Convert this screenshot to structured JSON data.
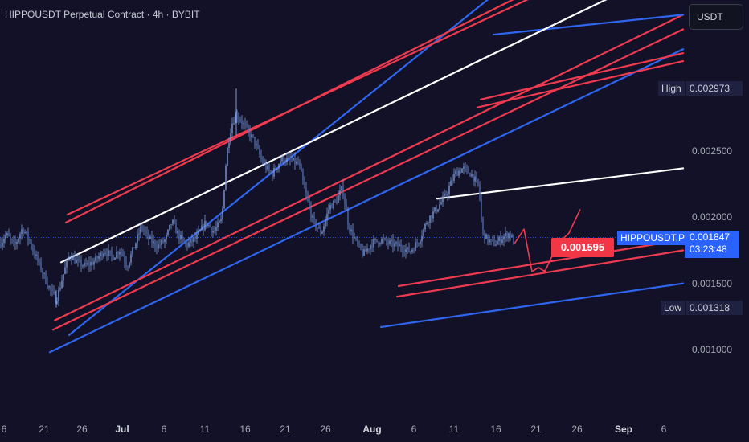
{
  "header": {
    "title": "HIPPOUSDT Perpetual Contract · 4h · BYBIT",
    "currency": "USDT"
  },
  "price_axis": {
    "ticks": [
      "0.002500",
      "0.002000",
      "0.001500",
      "0.001000"
    ],
    "high_label": "High",
    "high_value": "0.002973",
    "low_label": "Low",
    "low_value": "0.001318",
    "symbol_label": "HIPPOUSDT.P",
    "last_price": "0.001847",
    "countdown": "03:23:48",
    "target_price": "0.001595"
  },
  "time_axis": {
    "ticks": [
      {
        "label": "6",
        "month": false
      },
      {
        "label": "21",
        "month": false
      },
      {
        "label": "26",
        "month": false
      },
      {
        "label": "Jul",
        "month": true
      },
      {
        "label": "6",
        "month": false
      },
      {
        "label": "11",
        "month": false
      },
      {
        "label": "16",
        "month": false
      },
      {
        "label": "21",
        "month": false
      },
      {
        "label": "26",
        "month": false
      },
      {
        "label": "Aug",
        "month": true
      },
      {
        "label": "6",
        "month": false
      },
      {
        "label": "11",
        "month": false
      },
      {
        "label": "16",
        "month": false
      },
      {
        "label": "21",
        "month": false
      },
      {
        "label": "26",
        "month": false
      },
      {
        "label": "Sep",
        "month": true
      },
      {
        "label": "6",
        "month": false
      }
    ]
  },
  "colors": {
    "background": "#131127",
    "candle": "#7d9ad8",
    "channel_blue": "#2f66f0",
    "channel_red": "#ef3b4f",
    "trend_white": "#ffffff",
    "projection": "#ef3b4f",
    "accent_blue": "#2962ff"
  },
  "chart_data": {
    "type": "candlestick",
    "price_range": [
      0.00085,
      0.0033
    ],
    "high": 0.002973,
    "low": 0.001318,
    "last": 0.001847,
    "target": 0.001595,
    "close_path": [
      [
        0,
        0.0018
      ],
      [
        8,
        0.00187
      ],
      [
        18,
        0.00178
      ],
      [
        28,
        0.00192
      ],
      [
        36,
        0.00183
      ],
      [
        44,
        0.00171
      ],
      [
        52,
        0.0016
      ],
      [
        60,
        0.00148
      ],
      [
        70,
        0.00137
      ],
      [
        78,
        0.00155
      ],
      [
        86,
        0.00172
      ],
      [
        96,
        0.00166
      ],
      [
        106,
        0.00163
      ],
      [
        118,
        0.00167
      ],
      [
        130,
        0.00175
      ],
      [
        140,
        0.0017
      ],
      [
        150,
        0.00176
      ],
      [
        158,
        0.00163
      ],
      [
        166,
        0.00176
      ],
      [
        176,
        0.00193
      ],
      [
        186,
        0.00183
      ],
      [
        196,
        0.00178
      ],
      [
        206,
        0.00183
      ],
      [
        214,
        0.00197
      ],
      [
        222,
        0.00186
      ],
      [
        232,
        0.00179
      ],
      [
        244,
        0.00184
      ],
      [
        256,
        0.00196
      ],
      [
        266,
        0.00189
      ],
      [
        276,
        0.00198
      ],
      [
        282,
        0.00248
      ],
      [
        288,
        0.0027
      ],
      [
        294,
        0.00278
      ],
      [
        300,
        0.00273
      ],
      [
        308,
        0.00265
      ],
      [
        316,
        0.00258
      ],
      [
        326,
        0.00242
      ],
      [
        338,
        0.00232
      ],
      [
        350,
        0.00244
      ],
      [
        362,
        0.00243
      ],
      [
        372,
        0.0024
      ],
      [
        380,
        0.00218
      ],
      [
        390,
        0.00196
      ],
      [
        400,
        0.00188
      ],
      [
        410,
        0.00208
      ],
      [
        418,
        0.00212
      ],
      [
        426,
        0.00222
      ],
      [
        434,
        0.00193
      ],
      [
        444,
        0.0018
      ],
      [
        452,
        0.00172
      ],
      [
        462,
        0.0018
      ],
      [
        474,
        0.00183
      ],
      [
        486,
        0.0018
      ],
      [
        498,
        0.00178
      ],
      [
        510,
        0.00174
      ],
      [
        522,
        0.00183
      ],
      [
        532,
        0.00198
      ],
      [
        544,
        0.00207
      ],
      [
        556,
        0.00218
      ],
      [
        566,
        0.00233
      ],
      [
        576,
        0.00237
      ],
      [
        586,
        0.00233
      ],
      [
        596,
        0.00223
      ],
      [
        600,
        0.0019
      ],
      [
        606,
        0.00183
      ],
      [
        616,
        0.0018
      ],
      [
        626,
        0.00185
      ],
      [
        634,
        0.00188
      ],
      [
        640,
        0.0018
      ]
    ],
    "trendlines": [
      {
        "color": "blue",
        "points": [
          [
            86,
            0.00111
          ],
          [
            608,
            0.00365
          ]
        ]
      },
      {
        "color": "red",
        "points": [
          [
            84,
            0.00202
          ],
          [
            658,
            0.00365
          ]
        ]
      },
      {
        "color": "red",
        "points": [
          [
            82,
            0.00196
          ],
          [
            640,
            0.00365
          ]
        ]
      },
      {
        "color": "red",
        "points": [
          [
            68,
            0.00122
          ],
          [
            850,
            0.00353
          ]
        ]
      },
      {
        "color": "red",
        "points": [
          [
            66,
            0.00115
          ],
          [
            850,
            0.00342
          ]
        ]
      },
      {
        "color": "blue",
        "points": [
          [
            62,
            0.00098
          ],
          [
            850,
            0.00327
          ]
        ]
      },
      {
        "color": "red",
        "points": [
          [
            598,
            0.00289
          ],
          [
            850,
            0.00324
          ]
        ]
      },
      {
        "color": "red",
        "points": [
          [
            594,
            0.00283
          ],
          [
            850,
            0.00318
          ]
        ]
      },
      {
        "color": "blue",
        "points": [
          [
            614,
            0.00338
          ],
          [
            850,
            0.00353
          ]
        ]
      },
      {
        "color": "red",
        "points": [
          [
            496,
            0.00148
          ],
          [
            850,
            0.00183
          ]
        ]
      },
      {
        "color": "red",
        "points": [
          [
            494,
            0.0014
          ],
          [
            850,
            0.00175
          ]
        ]
      },
      {
        "color": "blue",
        "points": [
          [
            474,
            0.00117
          ],
          [
            850,
            0.0015
          ]
        ]
      },
      {
        "color": "white",
        "points": [
          [
            76,
            0.00166
          ],
          [
            790,
            0.00375
          ]
        ]
      },
      {
        "color": "white",
        "points": [
          [
            544,
            0.00214
          ],
          [
            850,
            0.00237
          ]
        ]
      }
    ],
    "projection": [
      [
        640,
        0.0018
      ],
      [
        652,
        0.00191
      ],
      [
        662,
        0.00159
      ],
      [
        670,
        0.00162
      ],
      [
        678,
        0.00159
      ],
      [
        694,
        0.0018
      ],
      [
        708,
        0.00188
      ],
      [
        722,
        0.00206
      ]
    ]
  }
}
